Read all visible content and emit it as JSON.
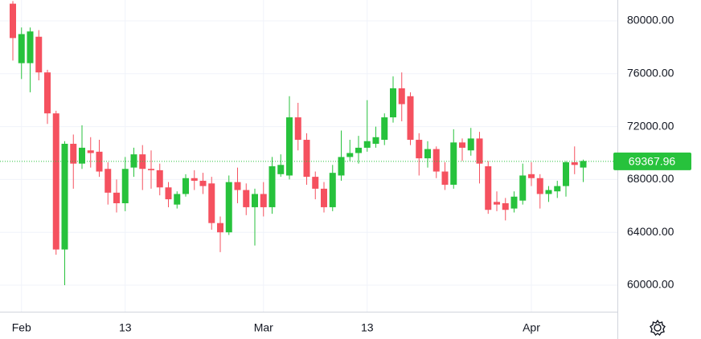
{
  "chart_data": {
    "type": "candlestick",
    "categories": [
      null,
      "Feb",
      null,
      null,
      null,
      null,
      null,
      null,
      null,
      null,
      null,
      null,
      null,
      "13",
      null,
      null,
      null,
      null,
      null,
      null,
      null,
      null,
      null,
      null,
      null,
      null,
      null,
      null,
      null,
      "Mar",
      null,
      null,
      null,
      null,
      null,
      null,
      null,
      null,
      null,
      null,
      null,
      "13",
      null,
      null,
      null,
      null,
      null,
      null,
      null,
      null,
      null,
      null,
      null,
      null,
      null,
      null,
      null,
      null,
      null,
      null,
      "Apr",
      null,
      null,
      null,
      null,
      null,
      null
    ],
    "open": [
      81300,
      76800,
      76800,
      78800,
      76100,
      73000,
      62700,
      70700,
      69200,
      70200,
      70100,
      68800,
      67000,
      66200,
      68900,
      69900,
      68800,
      68700,
      67400,
      66100,
      66900,
      68100,
      67900,
      67700,
      64700,
      64000,
      67800,
      67200,
      65900,
      66900,
      65900,
      68400,
      68300,
      72700,
      71000,
      68200,
      67300,
      65900,
      68300,
      69700,
      70000,
      70400,
      70700,
      71000,
      72700,
      74900,
      74300,
      71000,
      69600,
      70300,
      68600,
      67600,
      70800,
      70200,
      71100,
      69000,
      66300,
      66200,
      65800,
      66400,
      68400,
      68100,
      66900,
      67100,
      67500,
      69300,
      68900
    ],
    "high": [
      81500,
      79500,
      79500,
      79300,
      76300,
      73200,
      70900,
      71400,
      72100,
      71200,
      71000,
      69300,
      68000,
      69700,
      70400,
      70600,
      70200,
      69200,
      67800,
      67100,
      68400,
      68700,
      68500,
      68200,
      65200,
      68300,
      68900,
      67700,
      67300,
      67800,
      69700,
      69900,
      74300,
      73800,
      71500,
      68600,
      67800,
      69100,
      71700,
      71000,
      71300,
      74000,
      72000,
      73000,
      75800,
      76100,
      74600,
      71500,
      70900,
      70500,
      69300,
      71800,
      71100,
      71900,
      71600,
      69400,
      67100,
      66600,
      67100,
      69200,
      69300,
      68400,
      67500,
      67900,
      69400,
      70500,
      69500
    ],
    "low": [
      77000,
      75600,
      74600,
      75500,
      72200,
      62300,
      60000,
      67300,
      68800,
      68900,
      68200,
      66100,
      65500,
      65600,
      68200,
      67200,
      67300,
      66800,
      65900,
      65800,
      66700,
      67200,
      66900,
      64200,
      62500,
      63800,
      66200,
      65300,
      63000,
      65200,
      65400,
      68200,
      68000,
      70200,
      67600,
      66500,
      65500,
      65600,
      67900,
      69400,
      69200,
      70100,
      70400,
      70600,
      72300,
      72400,
      70600,
      68300,
      68900,
      68100,
      67200,
      67300,
      69400,
      69800,
      67700,
      65400,
      65600,
      64900,
      65500,
      66100,
      67500,
      65800,
      66300,
      66600,
      66700,
      68400,
      67800
    ],
    "close": [
      78700,
      79000,
      79200,
      76100,
      73000,
      62700,
      70700,
      69200,
      70400,
      70000,
      68600,
      67000,
      66200,
      68800,
      69900,
      68800,
      68700,
      67400,
      66500,
      66900,
      68100,
      67900,
      67500,
      64700,
      64000,
      67800,
      67200,
      65900,
      66900,
      65900,
      69000,
      69100,
      72700,
      71000,
      68200,
      67300,
      65900,
      68500,
      69700,
      70000,
      70400,
      70900,
      71200,
      72700,
      74900,
      73700,
      71000,
      69600,
      70300,
      68600,
      67600,
      70800,
      70400,
      71100,
      69200,
      65700,
      66100,
      65700,
      66700,
      68300,
      68100,
      66900,
      67200,
      67500,
      69300,
      69100,
      69400
    ],
    "up_color": "#27c23c",
    "down_color": "#f5515f",
    "last_price": 69367.96,
    "ylim": [
      57994,
      81580
    ],
    "yticks": [
      {
        "value": 60000,
        "label": "60000.00"
      },
      {
        "value": 64000,
        "label": "64000.00"
      },
      {
        "value": 68000,
        "label": "68000.00"
      },
      {
        "value": 72000,
        "label": "72000.00"
      },
      {
        "value": 76000,
        "label": "76000.00"
      },
      {
        "value": 80000,
        "label": "80000.00"
      }
    ],
    "grid": true
  }
}
